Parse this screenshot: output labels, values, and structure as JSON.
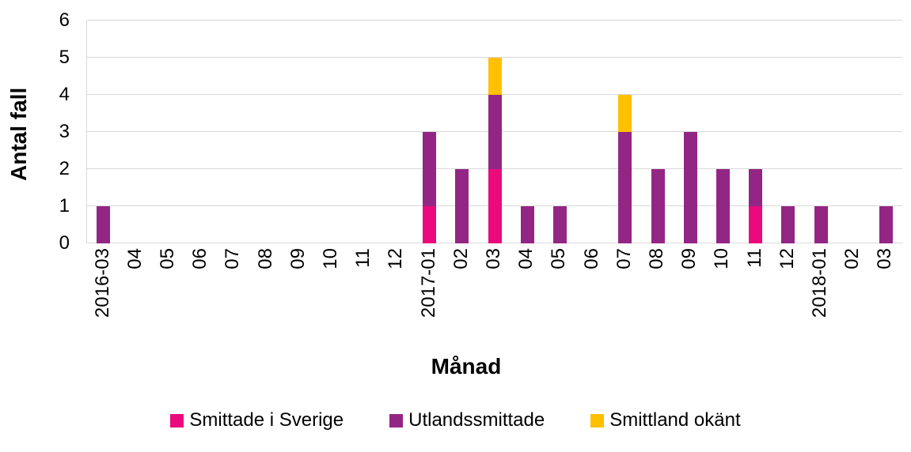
{
  "chart_data": {
    "type": "bar",
    "stacked": true,
    "xlabel": "Månad",
    "ylabel": "Antal fall",
    "categories": [
      "2016-03",
      "04",
      "05",
      "06",
      "07",
      "08",
      "09",
      "10",
      "11",
      "12",
      "2017-01",
      "02",
      "03",
      "04",
      "05",
      "06",
      "07",
      "08",
      "09",
      "10",
      "11",
      "12",
      "2018-01",
      "02",
      "03"
    ],
    "series": [
      {
        "name": "Smittade i Sverige",
        "color": "#eb0a7e",
        "values": [
          0,
          0,
          0,
          0,
          0,
          0,
          0,
          0,
          0,
          0,
          1,
          0,
          2,
          0,
          0,
          0,
          0,
          0,
          0,
          0,
          1,
          0,
          0,
          0,
          0
        ]
      },
      {
        "name": "Utlandssmittade",
        "color": "#932684",
        "values": [
          1,
          0,
          0,
          0,
          0,
          0,
          0,
          0,
          0,
          0,
          2,
          2,
          2,
          1,
          1,
          0,
          3,
          2,
          3,
          2,
          1,
          1,
          1,
          0,
          1
        ]
      },
      {
        "name": "Smittland okänt",
        "color": "#ffc000",
        "values": [
          0,
          0,
          0,
          0,
          0,
          0,
          0,
          0,
          0,
          0,
          0,
          0,
          1,
          0,
          0,
          0,
          1,
          0,
          0,
          0,
          0,
          0,
          0,
          0,
          0
        ]
      }
    ],
    "ylim": [
      0,
      6
    ],
    "yticks": [
      0,
      1,
      2,
      3,
      4,
      5,
      6
    ],
    "grid": "horizontal",
    "gridline_color": "#d9d9d9",
    "text_color": "#000000",
    "background_color": "#ffffff",
    "legend_position": "bottom"
  }
}
